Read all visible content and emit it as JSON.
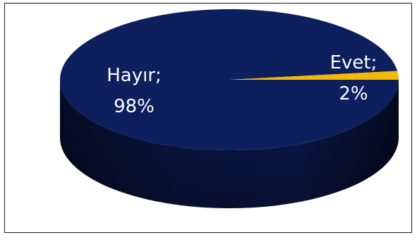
{
  "chart_data": {
    "type": "pie",
    "style": "3d",
    "categories": [
      "Hayır",
      "Evet"
    ],
    "values": [
      98,
      2
    ],
    "labels": [
      {
        "name": "Hayır;",
        "value": "98%"
      },
      {
        "name": "Evet;",
        "value": "2%"
      }
    ],
    "colors": {
      "Hayır": "#0d1f5c",
      "Evet": "#f5b800",
      "label_on_dark": "#ffffff",
      "label_on_yellow": "#1a2a6c",
      "border": "#1a1a1a"
    },
    "legend": "none"
  }
}
